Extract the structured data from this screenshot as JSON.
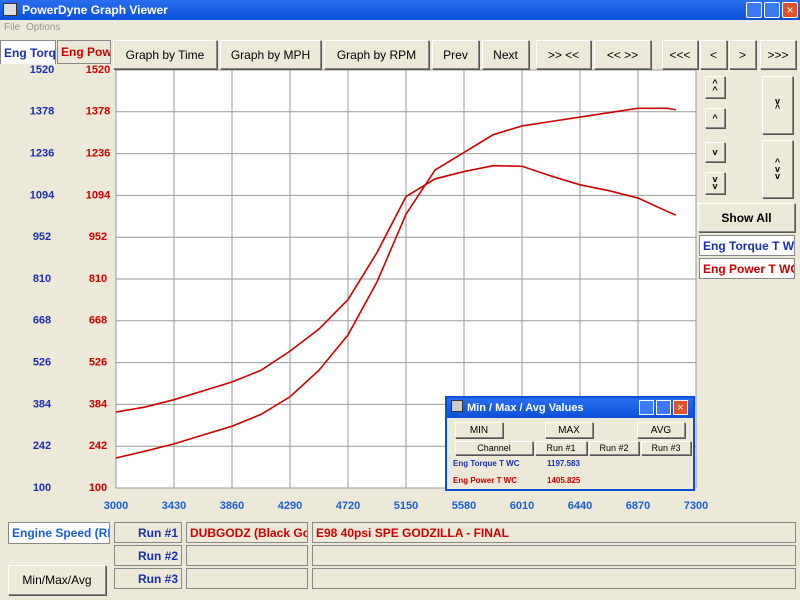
{
  "window": {
    "title": "PowerDyne Graph Viewer"
  },
  "menu": [
    "File",
    "Options"
  ],
  "tabs": [
    "Eng Torq",
    "Eng Powe"
  ],
  "toolbar": [
    "Graph by Time",
    "Graph by MPH",
    "Graph by RPM",
    "Prev",
    "Next",
    ">> <<",
    "<< >>",
    "<<<",
    "<",
    ">",
    ">>>"
  ],
  "show_all": "Show All",
  "chart_data": {
    "type": "line",
    "x": [
      3000,
      3215,
      3430,
      3645,
      3860,
      4075,
      4290,
      4505,
      4720,
      4935,
      5150,
      5365,
      5580,
      5795,
      6010,
      6225,
      6440,
      6655,
      6870,
      7085,
      7150
    ],
    "series": [
      {
        "name": "Eng Torque T WC",
        "color": "#cc0000",
        "axis": "y",
        "values": [
          358,
          375,
          400,
          430,
          460,
          500,
          565,
          640,
          740,
          900,
          1090,
          1150,
          1175,
          1195,
          1193,
          1160,
          1130,
          1110,
          1085,
          1040,
          1027
        ]
      },
      {
        "name": "Eng Power T WC",
        "color": "#cc0000",
        "axis": "y2",
        "values": [
          202,
          225,
          250,
          280,
          310,
          350,
          410,
          500,
          620,
          800,
          1030,
          1180,
          1240,
          1300,
          1330,
          1345,
          1360,
          1375,
          1390,
          1390,
          1385
        ]
      }
    ],
    "xlim": [
      3000,
      7300
    ],
    "xticks": [
      3000,
      3430,
      3860,
      4290,
      4720,
      5150,
      5580,
      6010,
      6440,
      6870,
      7300
    ],
    "ylim": [
      100,
      1520
    ],
    "yticks": [
      100,
      242,
      384,
      526,
      668,
      810,
      952,
      1094,
      1236,
      1378,
      1520
    ],
    "y2lim": [
      100,
      1520
    ],
    "y2ticks": [
      100,
      242,
      384,
      526,
      668,
      810,
      952,
      1094,
      1236,
      1378,
      1520
    ],
    "grid": true,
    "xcolor": "#1a5fd0",
    "ycolor": "#1a2fb0",
    "y2color": "#cc0000"
  },
  "popup": {
    "title": "Min / Max / Avg Values",
    "buttons": [
      "MIN",
      "MAX",
      "AVG"
    ],
    "headers": [
      "Channel",
      "Run #1",
      "Run #2",
      "Run #3"
    ],
    "values": [
      "1197.583",
      "1405.825"
    ]
  },
  "footer": {
    "axis_channel": "Engine Speed (RI",
    "runs": [
      "Run #1",
      "Run #2",
      "Run #3"
    ],
    "run1_car": "DUBGODZ (Black Goo",
    "run1_desc": "E98 40psi SPE GODZILLA - FINAL",
    "button": "Min/Max/Avg"
  }
}
